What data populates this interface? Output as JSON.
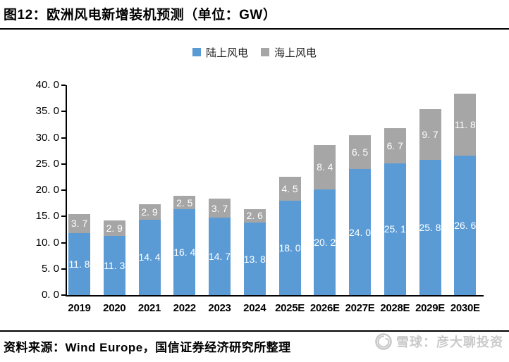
{
  "figure_title": "图12：欧洲风电新增装机预测（单位：GW）",
  "source_note": "资料来源：Wind Europe，国信证券经济研究所整理",
  "watermark": {
    "icon": "snowball-icon",
    "text": "雪球：彦大聊投资",
    "color": "#c9c9c9"
  },
  "chart_data": {
    "type": "bar",
    "stacked": true,
    "title": "欧洲风电新增装机预测",
    "unit": "GW",
    "categories": [
      "2019",
      "2020",
      "2021",
      "2022",
      "2023",
      "2024",
      "2025E",
      "2026E",
      "2027E",
      "2028E",
      "2029E",
      "2030E"
    ],
    "series": [
      {
        "name": "陆上风电",
        "color": "#5B9BD5",
        "values": [
          11.8,
          11.3,
          14.4,
          16.4,
          14.7,
          13.8,
          18.0,
          20.2,
          24.0,
          25.1,
          25.8,
          26.6
        ]
      },
      {
        "name": "海上风电",
        "color": "#A6A6A6",
        "values": [
          3.7,
          2.9,
          2.9,
          2.5,
          3.7,
          2.6,
          4.5,
          8.4,
          6.5,
          6.7,
          9.7,
          11.8
        ]
      }
    ],
    "ylim": [
      0,
      40
    ],
    "yticks": [
      "0.0",
      "5.0",
      "10.0",
      "15.0",
      "20.0",
      "25.0",
      "30.0",
      "35.0",
      "40.0"
    ],
    "grid": false,
    "legend_position": "top",
    "bar_label_color": "#ffffff",
    "axis_color": "#000000"
  }
}
